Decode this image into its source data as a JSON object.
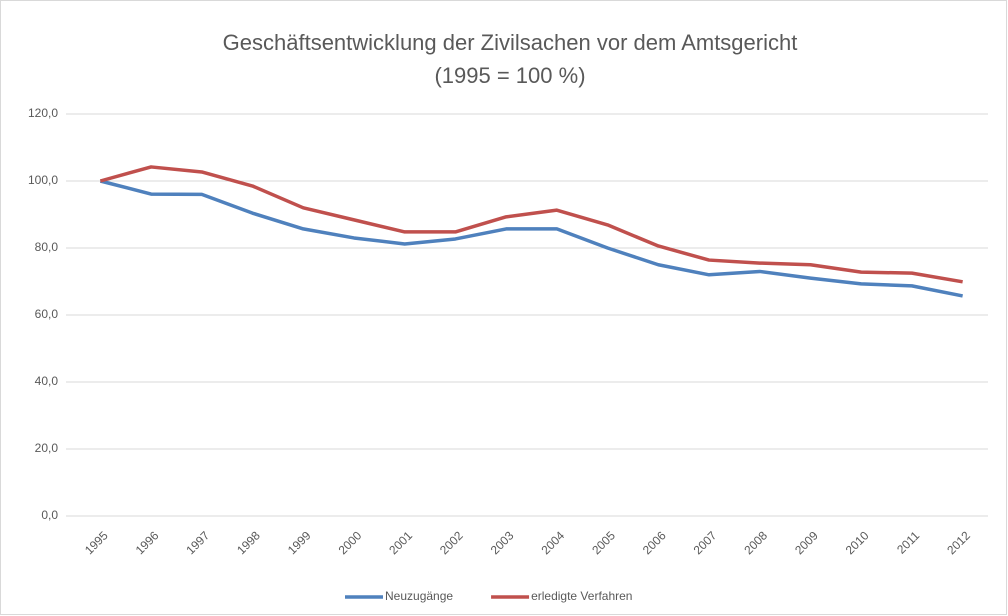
{
  "chart_data": {
    "type": "line",
    "title": "Geschäftsentwicklung  der Zivilsachen vor dem Amtsgericht",
    "subtitle": "(1995 = 100 %)",
    "categories": [
      "1995",
      "1996",
      "1997",
      "1998",
      "1999",
      "2000",
      "2001",
      "2002",
      "2003",
      "2004",
      "2005",
      "2006",
      "2007",
      "2008",
      "2009",
      "2010",
      "2011",
      "2012"
    ],
    "series": [
      {
        "name": "Neuzugänge",
        "color": "#4f81bd",
        "values": [
          100,
          96.1,
          96,
          90.4,
          85.7,
          83,
          81.2,
          82.7,
          85.7,
          85.7,
          80,
          75,
          72,
          73,
          71,
          69.3,
          68.7,
          65.7
        ]
      },
      {
        "name": "erledigte Verfahren",
        "color": "#c0504d",
        "values": [
          100,
          104.2,
          102.7,
          98.5,
          92,
          88.4,
          84.8,
          84.8,
          89.3,
          91.3,
          86.9,
          80.6,
          76.4,
          75.5,
          75,
          72.8,
          72.5,
          69.9
        ]
      }
    ],
    "ylim": [
      0,
      120
    ],
    "yticks": [
      {
        "value": 0,
        "label": "0,0"
      },
      {
        "value": 20,
        "label": "20,0"
      },
      {
        "value": 40,
        "label": "40,0"
      },
      {
        "value": 60,
        "label": "60,0"
      },
      {
        "value": 80,
        "label": "80,0"
      },
      {
        "value": 100,
        "label": "100,0"
      },
      {
        "value": 120,
        "label": "120,0"
      }
    ],
    "grid": true,
    "legend": "bottom"
  }
}
